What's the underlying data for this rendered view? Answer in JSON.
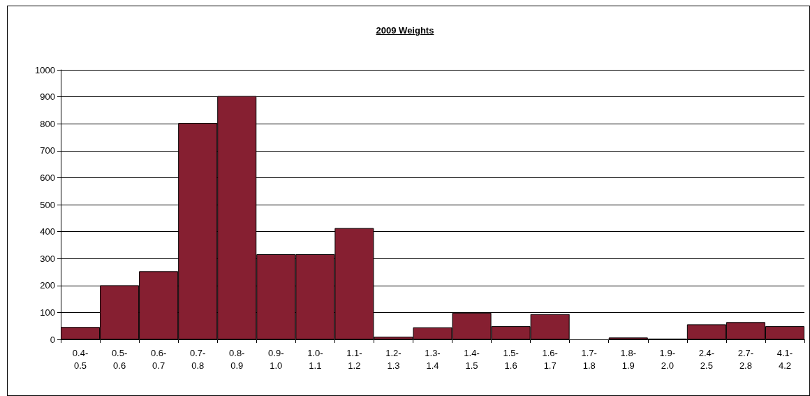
{
  "chart_data": {
    "type": "bar",
    "title": "2009 Weights",
    "categories": [
      "0.4-0.5",
      "0.5-0.6",
      "0.6-0.7",
      "0.7-0.8",
      "0.8-0.9",
      "0.9-1.0",
      "1.0-1.1",
      "1.1-1.2",
      "1.2-1.3",
      "1.3-1.4",
      "1.4-1.5",
      "1.5-1.6",
      "1.6-1.7",
      "1.7-1.8",
      "1.8-1.9",
      "1.9-2.0",
      "2.4-2.5",
      "2.7-2.8",
      "4.1-4.2"
    ],
    "values": [
      46,
      201,
      253,
      803,
      903,
      316,
      316,
      413,
      10,
      45,
      99,
      49,
      94,
      0,
      7,
      3,
      56,
      64,
      49
    ],
    "color": "#861f31",
    "ylim": [
      0,
      1000
    ],
    "yticks": [
      0,
      100,
      200,
      300,
      400,
      500,
      600,
      700,
      800,
      900,
      1000
    ],
    "grid": "y"
  }
}
